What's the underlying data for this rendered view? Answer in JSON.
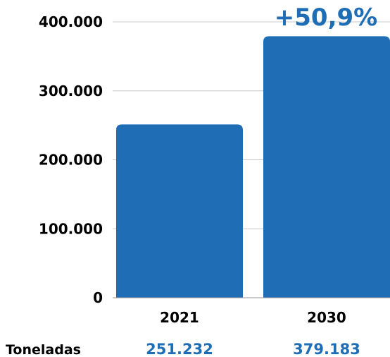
{
  "chart_data": {
    "type": "bar",
    "categories": [
      "2021",
      "2030"
    ],
    "values": [
      251232,
      379183
    ],
    "value_labels": [
      "251.232",
      "379.183"
    ],
    "ylim": [
      0,
      400000
    ],
    "yticks": [
      0,
      100000,
      200000,
      300000,
      400000
    ],
    "ytick_labels": [
      "0",
      "100.000",
      "200.000",
      "300.000",
      "400.000"
    ],
    "grid": true,
    "row_label": "Toneladas",
    "annotation": "+50,9%"
  },
  "colors": {
    "bar": "#1f6eb5",
    "value_text": "#1f6eb5",
    "grid": "#c8c8c8",
    "axis": "#9a9a9a"
  }
}
